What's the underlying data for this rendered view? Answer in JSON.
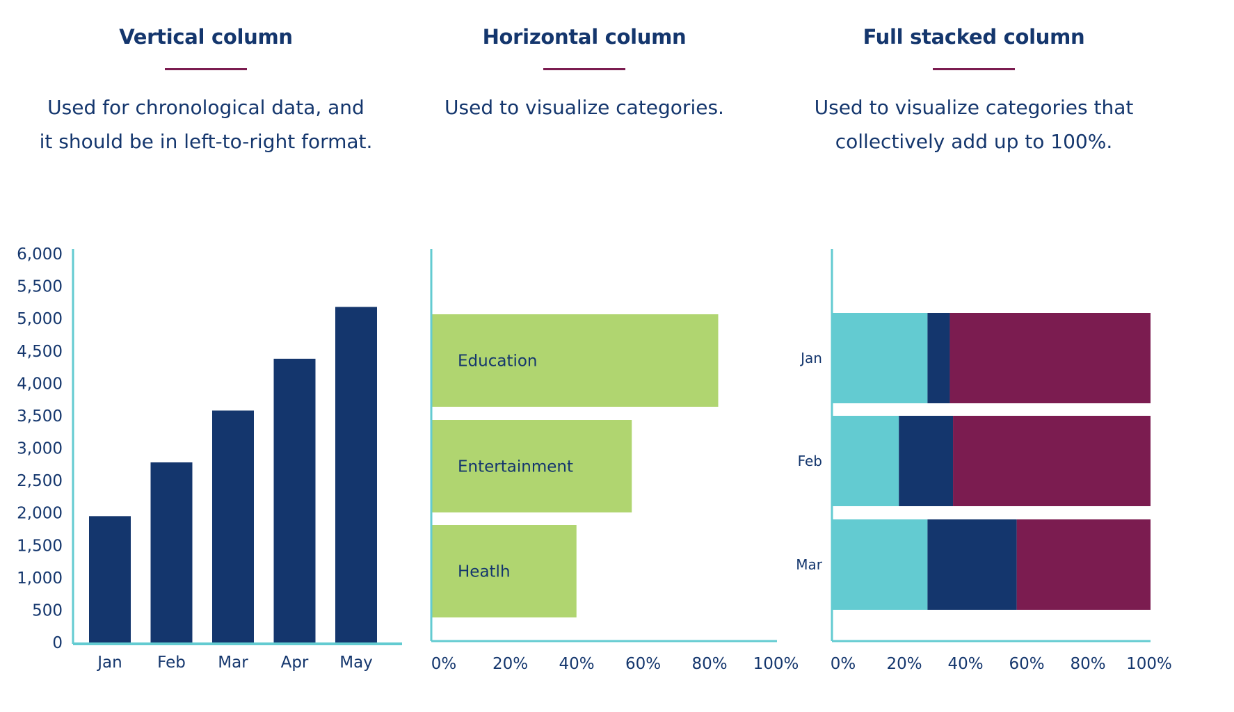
{
  "panels": [
    {
      "title": "Vertical column",
      "description": "Used for chronological data, and it should be in left-to-right format."
    },
    {
      "title": "Horizontal column",
      "description": "Used to visualize categories."
    },
    {
      "title": "Full stacked column",
      "description": "Used to visualize categories that collectively add up to 100%."
    }
  ],
  "colors": {
    "navy": "#14366d",
    "green": "#b0d570",
    "teal": "#63cbd1",
    "plum": "#7b1c50",
    "rule": "#7b1c50"
  },
  "chart_data": [
    {
      "type": "bar",
      "orientation": "vertical",
      "categories": [
        "Jan",
        "Feb",
        "Mar",
        "Apr",
        "May"
      ],
      "values": [
        1950,
        2780,
        3580,
        4380,
        5180
      ],
      "ylim": [
        0,
        6000
      ],
      "yticks": [
        0,
        500,
        1000,
        1500,
        2000,
        2500,
        3000,
        3500,
        4000,
        4500,
        5000,
        5500,
        6000
      ],
      "ytick_labels": [
        "0",
        "500",
        "1,000",
        "1,500",
        "2,000",
        "2,500",
        "3,000",
        "3,500",
        "4,000",
        "4,500",
        "5,000",
        "5,500",
        "6,000"
      ],
      "color": "#14366d"
    },
    {
      "type": "bar",
      "orientation": "horizontal",
      "categories": [
        "Education",
        "Entertainment",
        "Heatlh"
      ],
      "values": [
        83,
        58,
        42
      ],
      "xlim": [
        0,
        100
      ],
      "xtick_labels": [
        "0%",
        "20%",
        "40%",
        "60%",
        "80%",
        "100%"
      ],
      "color": "#b0d570"
    },
    {
      "type": "bar",
      "orientation": "horizontal",
      "stacked": "percent",
      "categories": [
        "Jan",
        "Feb",
        "Mar"
      ],
      "series": [
        {
          "values": [
            30,
            21,
            30
          ],
          "color": "#63cbd1"
        },
        {
          "values": [
            7,
            17,
            28
          ],
          "color": "#14366d"
        },
        {
          "values": [
            63,
            62,
            42
          ],
          "color": "#7b1c50"
        }
      ],
      "xlim": [
        0,
        100
      ],
      "xtick_labels": [
        "0%",
        "20%",
        "40%",
        "60%",
        "80%",
        "100%"
      ]
    }
  ]
}
